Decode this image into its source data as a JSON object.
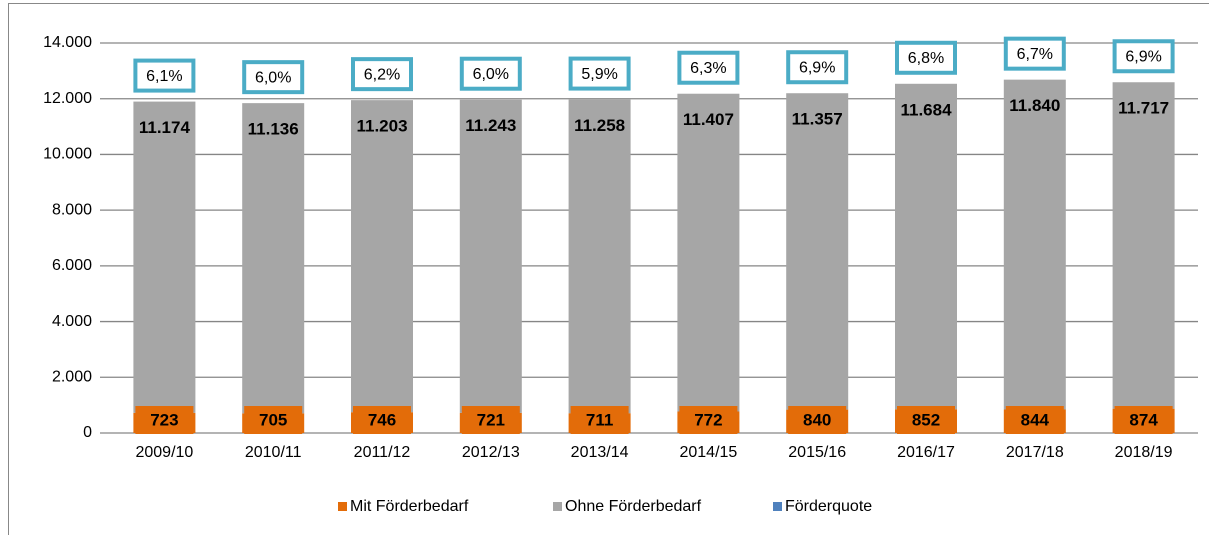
{
  "chart_data": {
    "type": "bar",
    "stacked": true,
    "categories": [
      "2009/10",
      "2010/11",
      "2011/12",
      "2012/13",
      "2013/14",
      "2014/15",
      "2015/16",
      "2016/17",
      "2017/18",
      "2018/19"
    ],
    "series": [
      {
        "name": "Mit Förderbedarf",
        "color": "#e36c09",
        "values": [
          723,
          705,
          746,
          721,
          711,
          772,
          840,
          852,
          844,
          874
        ]
      },
      {
        "name": "Ohne Förderbedarf",
        "color": "#a6a6a6",
        "values": [
          11174,
          11136,
          11203,
          11243,
          11258,
          11407,
          11357,
          11684,
          11840,
          11717
        ],
        "value_labels": [
          "11.174",
          "11.136",
          "11.203",
          "11.243",
          "11.258",
          "11.407",
          "11.357",
          "11.684",
          "11.840",
          "11.717"
        ]
      },
      {
        "name": "Förderquote",
        "color": "#4f81bd",
        "label_border": "#4bacc6",
        "values": [
          6.1,
          6.0,
          6.2,
          6.0,
          5.9,
          6.3,
          6.9,
          6.8,
          6.7,
          6.9
        ],
        "value_labels": [
          "6,1%",
          "6,0%",
          "6,2%",
          "6,0%",
          "5,9%",
          "6,3%",
          "6,9%",
          "6,8%",
          "6,7%",
          "6,9%"
        ]
      }
    ],
    "ylim": [
      0,
      14000
    ],
    "yticks": [
      0,
      {
        "value": 2000,
        "label": "2.000"
      },
      {
        "value": 4000,
        "label": "4.000"
      },
      {
        "value": 6000,
        "label": "6.000"
      },
      {
        "value": 8000,
        "label": "8.000"
      },
      {
        "value": 10000,
        "label": "10.000"
      },
      {
        "value": 12000,
        "label": "12.000"
      },
      {
        "value": 14000,
        "label": "14.000"
      }
    ],
    "grid": true,
    "legend": "bottom"
  }
}
